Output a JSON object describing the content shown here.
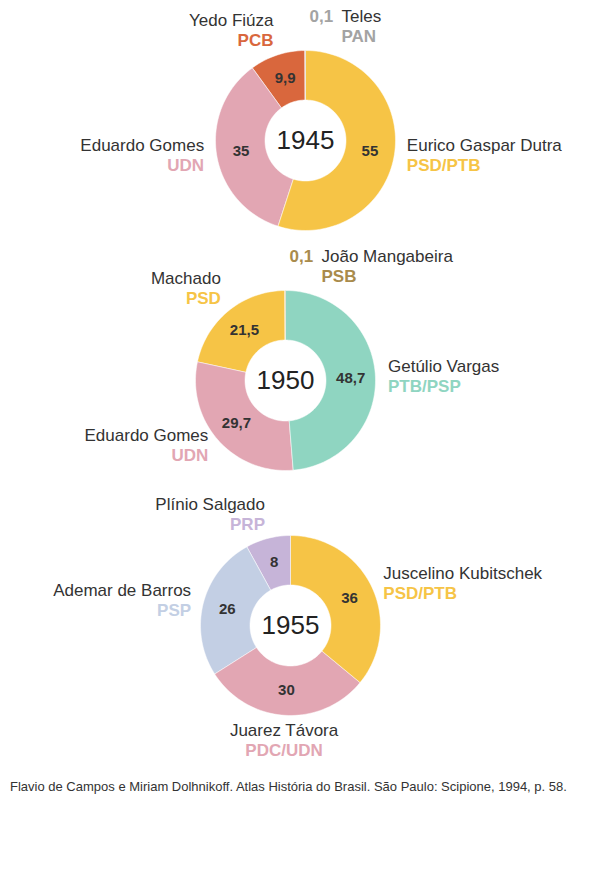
{
  "chart_data": [
    {
      "type": "pie",
      "title": "1945",
      "categories": [
        "Eurico Gaspar Dutra",
        "Eduardo Gomes",
        "Yedo Fiúza",
        "Teles"
      ],
      "parties": [
        "PSD/PTB",
        "UDN",
        "PCB",
        "PAN"
      ],
      "values": [
        55,
        35,
        9.9,
        0.1
      ],
      "value_labels": [
        "55",
        "35",
        "9,9",
        "0,1"
      ],
      "colors": [
        "#f6c446",
        "#e2a6b3",
        "#d9673d",
        "#a3a3a3"
      ],
      "data_labels": true
    },
    {
      "type": "pie",
      "title": "1950",
      "categories": [
        "Getúlio Vargas",
        "Eduardo Gomes",
        "Machado",
        "João Mangabeira"
      ],
      "parties": [
        "PTB/PSP",
        "UDN",
        "PSD",
        "PSB"
      ],
      "values": [
        48.7,
        29.7,
        21.5,
        0.1
      ],
      "value_labels": [
        "48,7",
        "29,7",
        "21,5",
        "0,1"
      ],
      "colors": [
        "#8fd5c1",
        "#e2a6b3",
        "#f6c446",
        "#a98b4c"
      ],
      "data_labels": true
    },
    {
      "type": "pie",
      "title": "1955",
      "categories": [
        "Juscelino Kubitschek",
        "Juarez Távora",
        "Ademar de Barros",
        "Plínio Salgado"
      ],
      "parties": [
        "PSD/PTB",
        "PDC/UDN",
        "PSP",
        "PRP"
      ],
      "values": [
        36,
        30,
        26,
        8
      ],
      "value_labels": [
        "36",
        "30",
        "26",
        "8"
      ],
      "colors": [
        "#f6c446",
        "#e2a6b3",
        "#c3cfe4",
        "#c6b4d8"
      ],
      "data_labels": true
    }
  ],
  "source": "Flavio de Campos e Miriam Dolhnikoff. Atlas História do Brasil. São Paulo: Scipione, 1994, p. 58."
}
